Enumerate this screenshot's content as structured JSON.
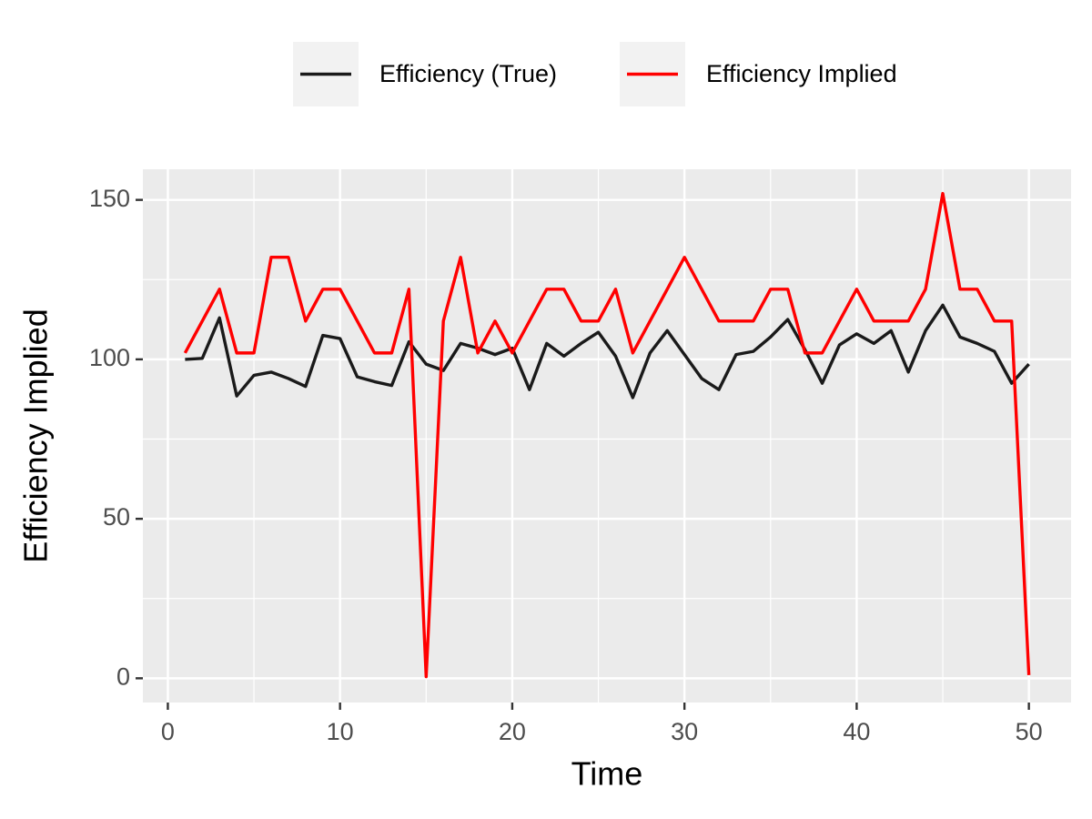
{
  "chart_data": {
    "type": "line",
    "x_label": "Time",
    "y_label": "Efficiency Implied",
    "x": [
      1,
      2,
      3,
      4,
      5,
      6,
      7,
      8,
      9,
      10,
      11,
      12,
      13,
      14,
      15,
      16,
      17,
      18,
      19,
      20,
      21,
      22,
      23,
      24,
      25,
      26,
      27,
      28,
      29,
      30,
      31,
      32,
      33,
      34,
      35,
      36,
      37,
      38,
      39,
      40,
      41,
      42,
      43,
      44,
      45,
      46,
      47,
      48,
      49,
      50
    ],
    "series": [
      {
        "name": "Efficiency (True)",
        "color": "#1a1a1a",
        "values": [
          100,
          100.3,
          113,
          88.5,
          95,
          96,
          94,
          91.5,
          107.5,
          106.5,
          94.5,
          93,
          91.8,
          105.5,
          98.5,
          96.5,
          105,
          103.5,
          101.5,
          103.5,
          90.5,
          105,
          101,
          105,
          108.5,
          101,
          88,
          102,
          109,
          101.5,
          94,
          90.5,
          101.5,
          102.5,
          107,
          112.5,
          103,
          92.5,
          104.5,
          108,
          105,
          109,
          96,
          109,
          117,
          107,
          105,
          102.5,
          92.5,
          98.5
        ]
      },
      {
        "name": "Efficiency Implied",
        "color": "#ff0000",
        "values": [
          102,
          112,
          122,
          102,
          102,
          132,
          132,
          112,
          122,
          122,
          112,
          102,
          102,
          122,
          0.5,
          112,
          132,
          102,
          112,
          102,
          112,
          122,
          122,
          112,
          112,
          122,
          102,
          112,
          122,
          132,
          122,
          112,
          112,
          112,
          122,
          122,
          102,
          102,
          112,
          122,
          112,
          112,
          112,
          122,
          152,
          122,
          122,
          112,
          112,
          1
        ]
      }
    ],
    "xlim": [
      -1.45,
      52.45
    ],
    "ylim": [
      -7.6,
      159.6
    ],
    "xticks": [
      0,
      10,
      20,
      30,
      40,
      50
    ],
    "yticks": [
      0,
      50,
      100,
      150
    ],
    "grid": true,
    "legend_position": "top"
  }
}
